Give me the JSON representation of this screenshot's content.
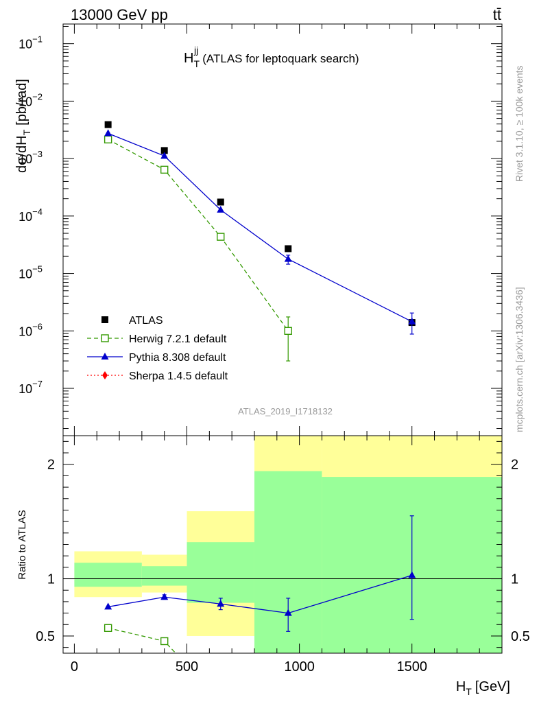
{
  "header": {
    "energy_label": "13000 GeV pp",
    "process_label": "tt̄"
  },
  "side_labels": {
    "rivet": "Rivet 3.1.10, ≥ 100k events",
    "mcplots": "mcplots.cern.ch [arXiv:1306.3436]"
  },
  "colors": {
    "atlas": "#000000",
    "herwig": "#339900",
    "pythia": "#0000cc",
    "sherpa": "#ff0000",
    "band_inner": "#99ff99",
    "band_outer": "#ffff99"
  },
  "chart_data": [
    {
      "type": "scatter",
      "panel": "main",
      "title": "H_T^jj (ATLAS for leptoquark search)",
      "title_main": "H",
      "title_sub": "T",
      "title_sup": "jj",
      "title_rest": "(ATLAS for leptoquark search)",
      "ylabel": "dσ/dH_T [pb/rad]",
      "ylabel_main": "dσ/dH",
      "ylabel_sub": "T",
      "ylabel_rest": "[pb/rad]",
      "yscale": "log",
      "ylim": [
        1.5e-08,
        0.22
      ],
      "xlim": [
        -50,
        1900
      ],
      "yticks": [
        {
          "v": 1e-07,
          "m": "10",
          "e": "−7"
        },
        {
          "v": 1e-06,
          "m": "10",
          "e": "−6"
        },
        {
          "v": 1e-05,
          "m": "10",
          "e": "−5"
        },
        {
          "v": 0.0001,
          "m": "10",
          "e": "−4"
        },
        {
          "v": 0.001,
          "m": "10",
          "e": "−3"
        },
        {
          "v": 0.01,
          "m": "10",
          "e": "−2"
        },
        {
          "v": 0.1,
          "m": "10",
          "e": "−1"
        }
      ],
      "watermark": "ATLAS_2019_I1718132",
      "legend_position": "bottom-left",
      "series": [
        {
          "name": "ATLAS",
          "marker": "filled-square",
          "line": "none",
          "x": [
            150,
            400,
            650,
            950,
            1500
          ],
          "y": [
            0.0039,
            0.00138,
            0.000175,
            2.7e-05,
            1.4e-06
          ]
        },
        {
          "name": "Herwig 7.2.1 default",
          "marker": "open-square",
          "line": "dashed",
          "x": [
            150,
            400,
            650,
            950
          ],
          "y": [
            0.00215,
            0.00064,
            4.35e-05,
            1e-06
          ],
          "err_low": [
            0,
            0,
            0,
            3e-07
          ],
          "err_high": [
            0,
            0,
            0,
            1.75e-06
          ]
        },
        {
          "name": "Pythia 8.308 default",
          "marker": "filled-triangle",
          "line": "solid",
          "x": [
            150,
            400,
            650,
            950,
            1500
          ],
          "y": [
            0.00275,
            0.00111,
            0.000128,
            1.78e-05,
            1.45e-06
          ],
          "err_low": [
            0,
            0,
            0,
            1.45e-05,
            8.8e-07
          ],
          "err_high": [
            0,
            0,
            0,
            2.08e-05,
            2.05e-06
          ]
        },
        {
          "name": "Sherpa 1.4.5 default",
          "marker": "filled-diamond",
          "line": "dotted",
          "x": [],
          "y": []
        }
      ]
    },
    {
      "type": "scatter",
      "panel": "ratio",
      "ylabel": "Ratio to ATLAS",
      "xlabel": "H_T [GeV]",
      "xlabel_main": "H",
      "xlabel_sub": "T",
      "xlabel_rest": "[GeV]",
      "ylim": [
        0.35,
        2.25
      ],
      "xlim": [
        -50,
        1900
      ],
      "xticks": [
        0,
        500,
        1000,
        1500
      ],
      "yticks": [
        0.5,
        1,
        2
      ],
      "reference_line": 1,
      "bands": [
        {
          "x0": 0,
          "x1": 300,
          "outer_lo": 0.84,
          "outer_hi": 1.24,
          "inner_lo": 0.93,
          "inner_hi": 1.14
        },
        {
          "x0": 300,
          "x1": 500,
          "outer_lo": 0.88,
          "outer_hi": 1.21,
          "inner_lo": 0.94,
          "inner_hi": 1.11
        },
        {
          "x0": 500,
          "x1": 800,
          "outer_lo": 0.5,
          "outer_hi": 1.59,
          "inner_lo": 0.79,
          "inner_hi": 1.32
        },
        {
          "x0": 800,
          "x1": 1100,
          "outer_lo": 0.35,
          "outer_hi": 2.25,
          "inner_lo": 0.35,
          "inner_hi": 1.94
        },
        {
          "x0": 1100,
          "x1": 1900,
          "outer_lo": 0.35,
          "outer_hi": 2.25,
          "inner_lo": 0.35,
          "inner_hi": 1.89
        }
      ],
      "series": [
        {
          "name": "Herwig 7.2.1 default",
          "marker": "open-square",
          "line": "dashed",
          "x": [
            150,
            400,
            450
          ],
          "y": [
            0.57,
            0.455,
            0.35
          ]
        },
        {
          "name": "Pythia 8.308 default",
          "marker": "filled-triangle",
          "line": "solid",
          "x": [
            150,
            400,
            650,
            950,
            1500
          ],
          "y": [
            0.755,
            0.84,
            0.78,
            0.7,
            1.03
          ],
          "err_low": [
            0.755,
            0.82,
            0.73,
            0.54,
            0.645
          ],
          "err_high": [
            0.755,
            0.86,
            0.83,
            0.83,
            1.55
          ]
        }
      ]
    }
  ]
}
